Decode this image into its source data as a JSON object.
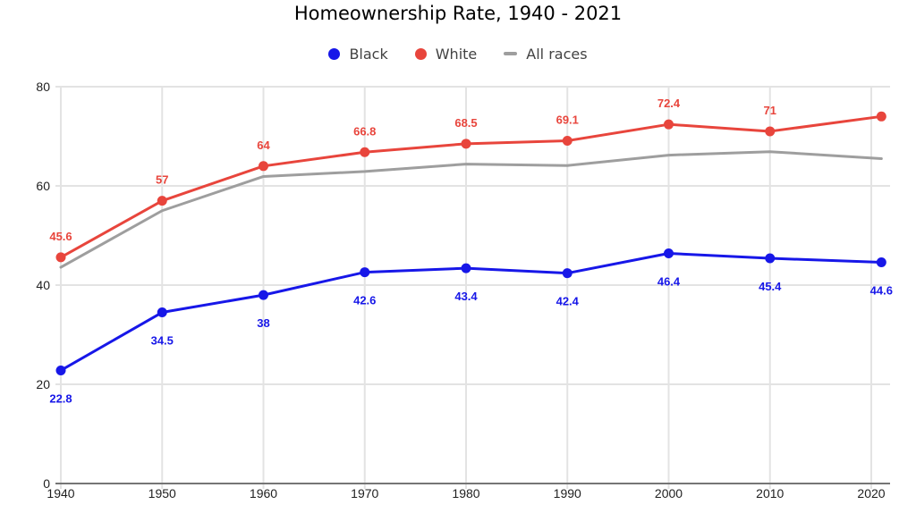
{
  "title": "Homeownership Rate, 1940 - 2021",
  "colors": {
    "background": "#ffffff",
    "grid": "#e3e3e3",
    "axis_line": "#757575",
    "axis_text": "#1f1f1f",
    "legend_text": "#424242",
    "title_text": "#000000"
  },
  "chart_data": {
    "type": "line",
    "title": "Homeownership Rate, 1940 - 2021",
    "xlabel": "",
    "ylabel": "",
    "grid": true,
    "legend_position": "top",
    "ylim": [
      0,
      80
    ],
    "y_ticks": [
      0,
      20,
      40,
      60,
      80
    ],
    "x_ticks": [
      1940,
      1950,
      1960,
      1970,
      1980,
      1990,
      2000,
      2010,
      2020
    ],
    "x_tick_labels": [
      "1940",
      "1950",
      "1960",
      "1970",
      "1980",
      "1990",
      "2000",
      "2010",
      "2020"
    ],
    "y_tick_labels": [
      "0",
      "20",
      "40",
      "60",
      "80"
    ],
    "x": [
      1940,
      1950,
      1960,
      1970,
      1980,
      1990,
      2000,
      2010,
      2021
    ],
    "series": [
      {
        "name": "Black",
        "color": "#1717e8",
        "marker": "circle",
        "label_position": "below",
        "values": [
          22.8,
          34.5,
          38,
          42.6,
          43.4,
          42.4,
          46.4,
          45.4,
          44.6
        ],
        "labels": [
          "22.8",
          "34.5",
          "38",
          "42.6",
          "43.4",
          "42.4",
          "46.4",
          "45.4",
          "44.6"
        ]
      },
      {
        "name": "White",
        "color": "#e8453c",
        "marker": "circle",
        "label_position": "above",
        "values": [
          45.6,
          57,
          64,
          66.8,
          68.5,
          69.1,
          72.4,
          71,
          74
        ],
        "labels": [
          "45.6",
          "57",
          "64",
          "66.8",
          "68.5",
          "69.1",
          "72.4",
          "71",
          ""
        ]
      },
      {
        "name": "All races",
        "color": "#9e9e9e",
        "marker": "dash",
        "label_position": "none",
        "values": [
          43.6,
          55,
          61.9,
          62.9,
          64.4,
          64.1,
          66.2,
          66.9,
          65.5
        ],
        "labels": [
          "",
          "",
          "",
          "",
          "",
          "",
          "",
          "",
          ""
        ]
      }
    ]
  }
}
